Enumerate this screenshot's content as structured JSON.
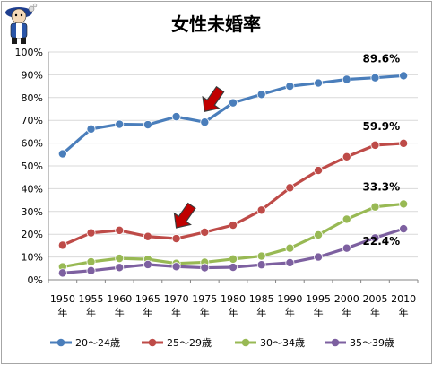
{
  "chart_data": {
    "type": "line",
    "title": "女性未婚率",
    "x": [
      "1950年",
      "1955年",
      "1960年",
      "1965年",
      "1970年",
      "1975年",
      "1980年",
      "1985年",
      "1990年",
      "1995年",
      "2000年",
      "2005年",
      "2010年"
    ],
    "ylim": [
      0,
      100
    ],
    "yticks": [
      "0%",
      "10%",
      "20%",
      "30%",
      "40%",
      "50%",
      "60%",
      "70%",
      "80%",
      "90%",
      "100%"
    ],
    "grid": true,
    "legend_position": "bottom",
    "series": [
      {
        "name": "20～24歳",
        "color": "#4a7ebb",
        "values": [
          55.3,
          66.2,
          68.3,
          68.1,
          71.6,
          69.2,
          77.7,
          81.4,
          85.0,
          86.4,
          88.0,
          88.7,
          89.6
        ],
        "end_label": "89.6%"
      },
      {
        "name": "25～29歳",
        "color": "#be4b48",
        "values": [
          15.2,
          20.6,
          21.7,
          19.0,
          18.1,
          20.9,
          24.0,
          30.6,
          40.4,
          48.0,
          54.0,
          59.1,
          59.9
        ],
        "end_label": "59.9%"
      },
      {
        "name": "30～34歳",
        "color": "#98b954",
        "values": [
          5.7,
          7.9,
          9.4,
          9.0,
          7.2,
          7.7,
          9.1,
          10.4,
          13.9,
          19.7,
          26.6,
          32.0,
          33.3
        ],
        "end_label": "33.3%"
      },
      {
        "name": "35～39歳",
        "color": "#7d60a0",
        "values": [
          3.0,
          4.0,
          5.4,
          6.7,
          5.8,
          5.3,
          5.5,
          6.6,
          7.5,
          10.0,
          13.9,
          18.4,
          22.4
        ],
        "end_label": "22.4%"
      }
    ],
    "annotations": [
      {
        "type": "arrow",
        "x": "1975年",
        "series": "20～24歳",
        "color": "#c00000"
      },
      {
        "type": "arrow",
        "x": "1970年",
        "series": "25～29歳",
        "color": "#c00000"
      }
    ]
  }
}
